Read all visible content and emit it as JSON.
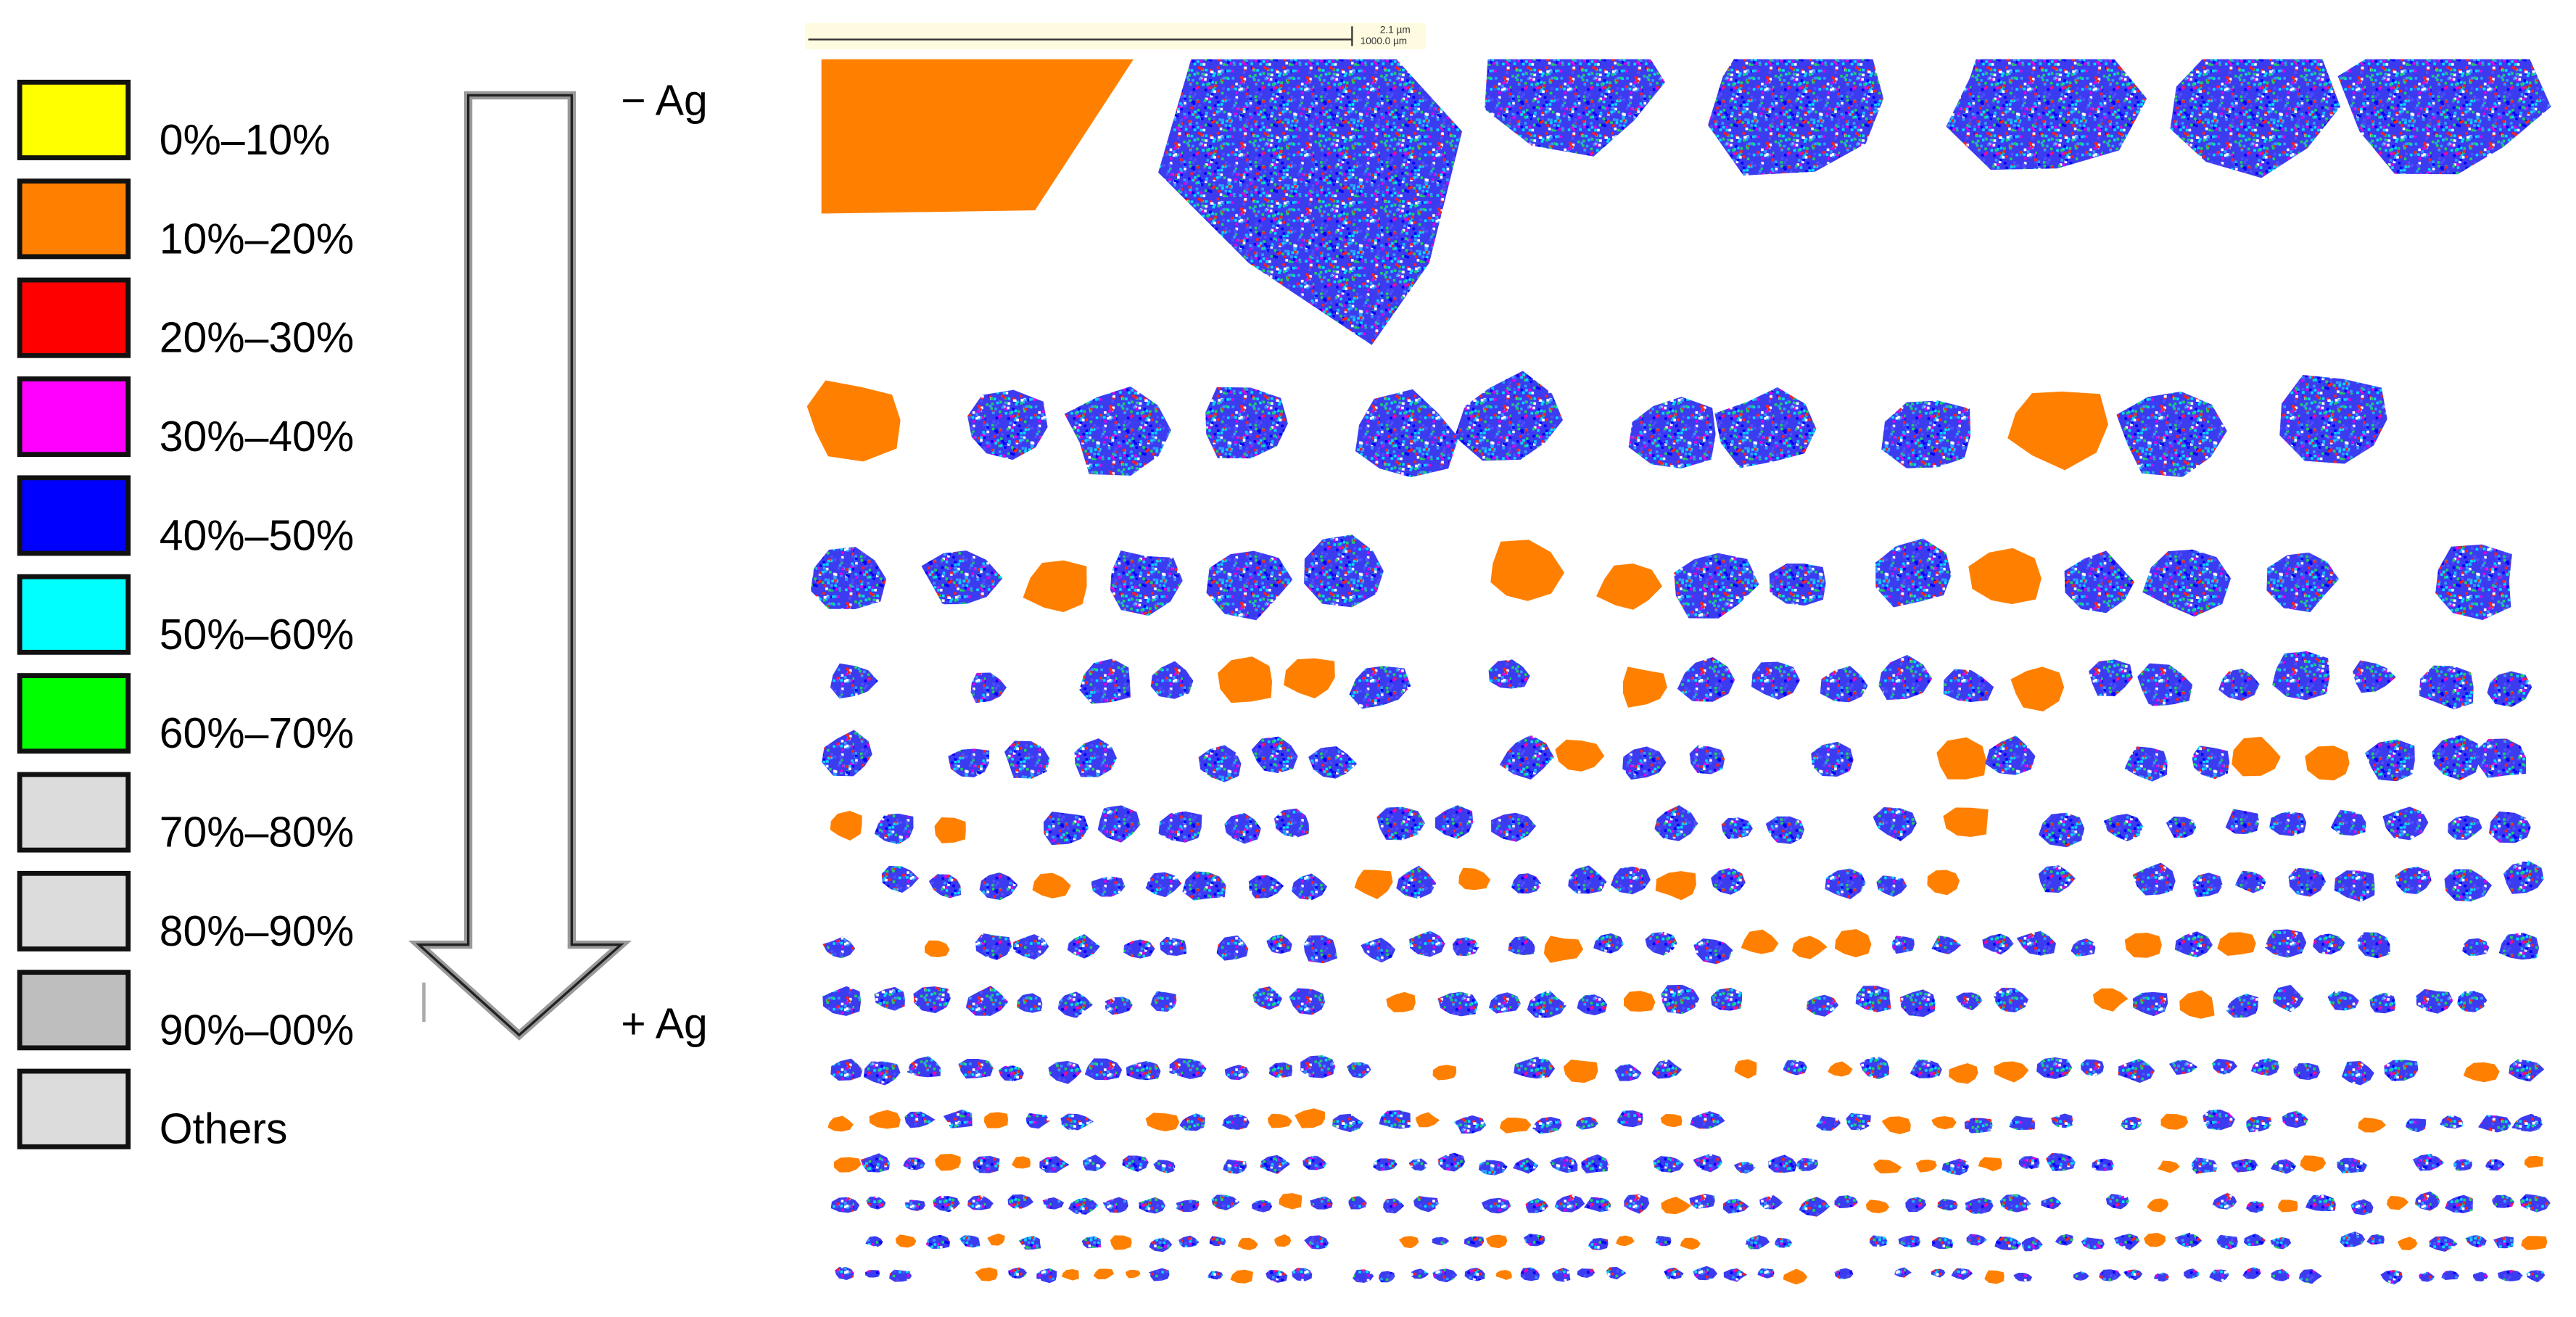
{
  "legend": {
    "items": [
      {
        "label": "0%–10%",
        "color": "#ffff00"
      },
      {
        "label": "10%–20%",
        "color": "#ff8000"
      },
      {
        "label": "20%–30%",
        "color": "#ff0000"
      },
      {
        "label": "30%–40%",
        "color": "#ff00ff"
      },
      {
        "label": "40%–50%",
        "color": "#0000ff"
      },
      {
        "label": "50%–60%",
        "color": "#00ffff"
      },
      {
        "label": "60%–70%",
        "color": "#00ff00"
      },
      {
        "label": "70%–80%",
        "color": "#dcdcdc"
      },
      {
        "label": "80%–90%",
        "color": "#dcdcdc"
      },
      {
        "label": "90%–00%",
        "color": "#bebebe"
      },
      {
        "label": "Others",
        "color": "#dcdcdc"
      }
    ]
  },
  "arrow": {
    "top_label": "− Ag",
    "bottom_label": "+ Ag"
  },
  "scale_bar": {
    "labels": [
      "2.1 µm",
      "1000.0 µm"
    ]
  }
}
